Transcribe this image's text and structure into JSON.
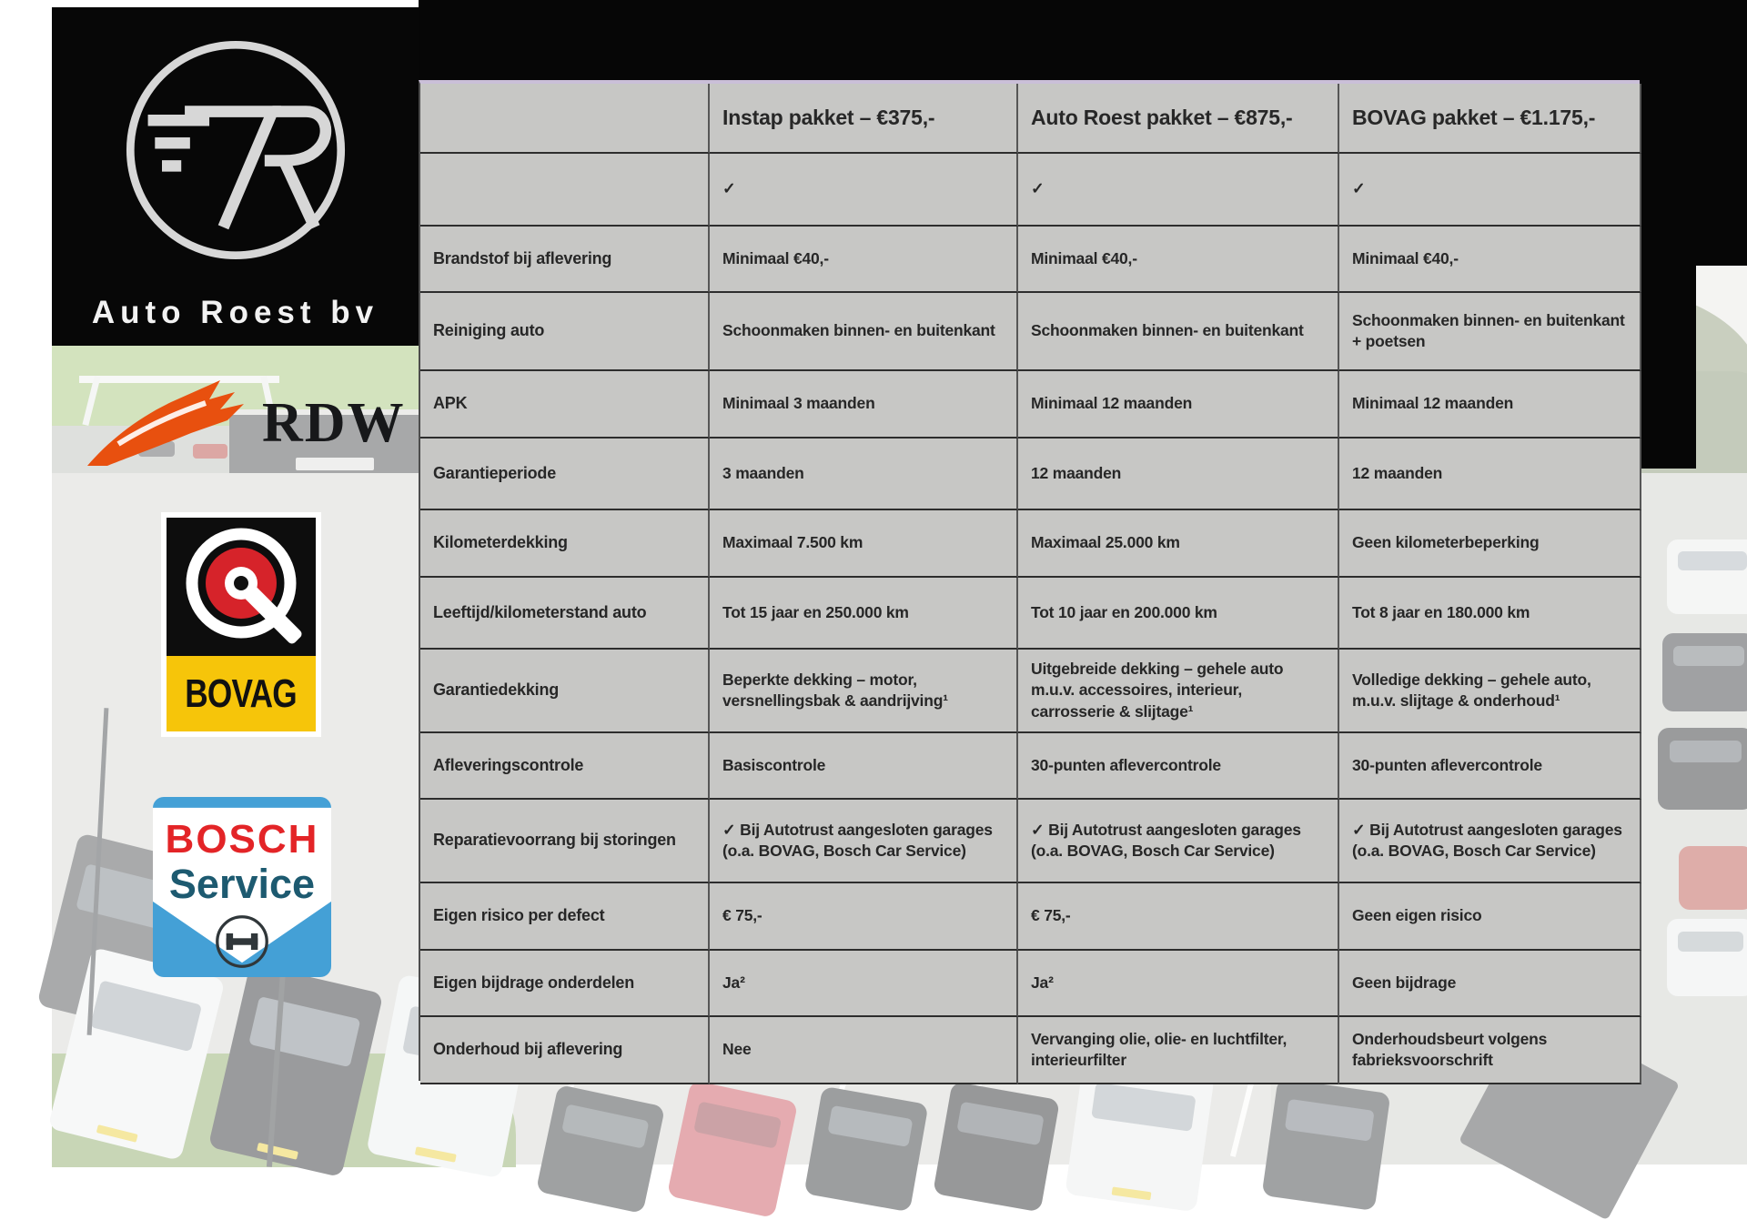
{
  "branding": {
    "dealer_logo": {
      "monogram": "7R",
      "name": "Auto Roest bv"
    },
    "rdw_label": "RDW",
    "bovag_label": "BOVAG",
    "bosch_label_line1": "BOSCH",
    "bosch_label_line2": "Service"
  },
  "table": {
    "columns": [
      "",
      "Instap pakket – €375,-",
      "Auto Roest pakket – €875,-",
      "BOVAG pakket – €1.175,-"
    ],
    "rows": [
      {
        "label": "",
        "cells": [
          "✓",
          "✓",
          "✓"
        ]
      },
      {
        "label": "Brandstof bij aflevering",
        "cells": [
          "Minimaal €40,-",
          "Minimaal €40,-",
          "Minimaal €40,-"
        ]
      },
      {
        "label": "Reiniging auto",
        "cells": [
          "Schoonmaken binnen- en buitenkant",
          "Schoonmaken binnen- en buitenkant",
          "Schoonmaken binnen- en buitenkant + poetsen"
        ]
      },
      {
        "label": "APK",
        "cells": [
          "Minimaal 3 maanden",
          "Minimaal 12 maanden",
          "Minimaal 12 maanden"
        ]
      },
      {
        "label": "Garantieperiode",
        "cells": [
          "3 maanden",
          "12 maanden",
          "12 maanden"
        ]
      },
      {
        "label": "Kilometerdekking",
        "cells": [
          "Maximaal 7.500 km",
          "Maximaal 25.000 km",
          "Geen kilometerbeperking"
        ]
      },
      {
        "label": "Leeftijd/kilometerstand auto",
        "cells": [
          "Tot 15 jaar en 250.000 km",
          "Tot 10 jaar en 200.000 km",
          "Tot 8 jaar en 180.000 km"
        ]
      },
      {
        "label": "Garantiedekking",
        "cells": [
          "Beperkte dekking – motor, versnellingsbak & aandrijving¹",
          "Uitgebreide dekking – gehele auto m.u.v. accessoires, interieur, carrosserie & slijtage¹",
          "Volledige dekking – gehele auto, m.u.v. slijtage & onderhoud¹"
        ]
      },
      {
        "label": "Afleveringscontrole",
        "cells": [
          "Basiscontrole",
          "30-punten aflevercontrole",
          "30-punten aflevercontrole"
        ]
      },
      {
        "label": "Reparatievoorrang bij storingen",
        "cells": [
          "✓ Bij Autotrust aangesloten garages (o.a. BOVAG, Bosch Car Service)",
          "✓ Bij Autotrust aangesloten garages (o.a. BOVAG, Bosch Car Service)",
          "✓ Bij Autotrust aangesloten garages (o.a. BOVAG, Bosch Car Service)"
        ]
      },
      {
        "label": "Eigen risico per defect",
        "cells": [
          "€ 75,-",
          "€ 75,-",
          "Geen eigen risico"
        ]
      },
      {
        "label": "Eigen bijdrage onderdelen",
        "cells": [
          "Ja²",
          "Ja²",
          "Geen bijdrage"
        ]
      },
      {
        "label": "Onderhoud bij aflevering",
        "cells": [
          "Nee",
          "Vervanging olie, olie- en luchtfilter, interieurfilter",
          "Onderhoudsbeurt volgens fabrieksvoorschrift"
        ]
      }
    ]
  },
  "colors": {
    "rdw_orange": "#e8500f",
    "bovag_yellow": "#f6c50a",
    "bovag_red": "#d6232a",
    "bosch_blue": "#44a0d6",
    "bosch_red": "#e32427",
    "bosch_teal": "#1d5a70",
    "table_accent": "#cabfd8",
    "cell_gray": "#c7c7c5"
  }
}
